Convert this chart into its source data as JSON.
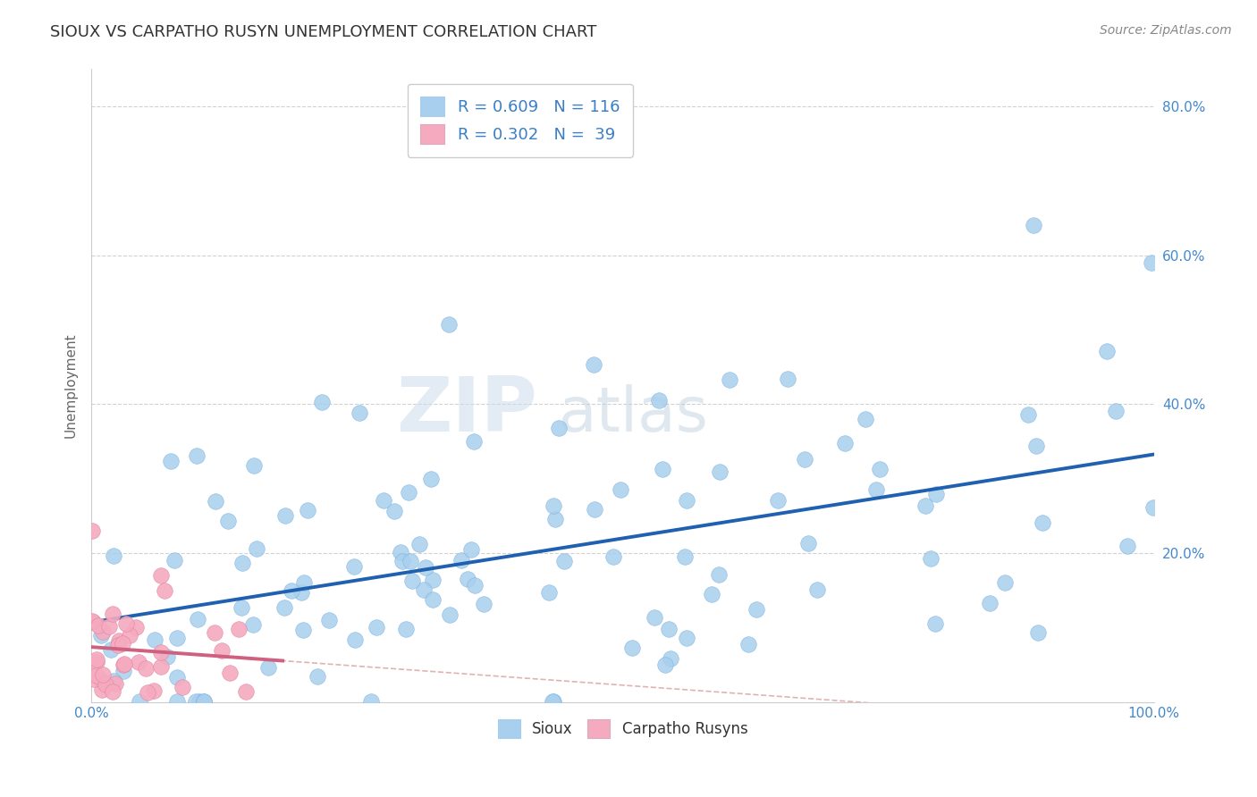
{
  "title": "SIOUX VS CARPATHO RUSYN UNEMPLOYMENT CORRELATION CHART",
  "source": "Source: ZipAtlas.com",
  "ylabel": "Unemployment",
  "xlim": [
    0,
    1.0
  ],
  "ylim": [
    0,
    0.85
  ],
  "xticks": [
    0.0,
    0.2,
    0.4,
    0.6,
    0.8,
    1.0
  ],
  "xticklabels": [
    "0.0%",
    "",
    "",
    "",
    "",
    "100.0%"
  ],
  "ytick_right_labels": [
    "80.0%",
    "60.0%",
    "40.0%",
    "20.0%"
  ],
  "ytick_right_vals": [
    0.8,
    0.6,
    0.4,
    0.2
  ],
  "sioux_color": "#A8CFED",
  "sioux_edge_color": "#7AAFE0",
  "carpatho_color": "#F5AABF",
  "carpatho_edge_color": "#E080A0",
  "sioux_line_color": "#2060B0",
  "carpatho_line_color": "#D06080",
  "ref_line_color": "#DDAAAA",
  "background_color": "#FFFFFF",
  "grid_color": "#CCCCCC",
  "legend_text_color": "#3A7EC6",
  "watermark_zip": "ZIP",
  "watermark_atlas": "atlas",
  "title_color": "#333333",
  "tick_color": "#4488CC",
  "sioux_R": 0.609,
  "sioux_N": 116,
  "carpatho_R": 0.302,
  "carpatho_N": 39
}
